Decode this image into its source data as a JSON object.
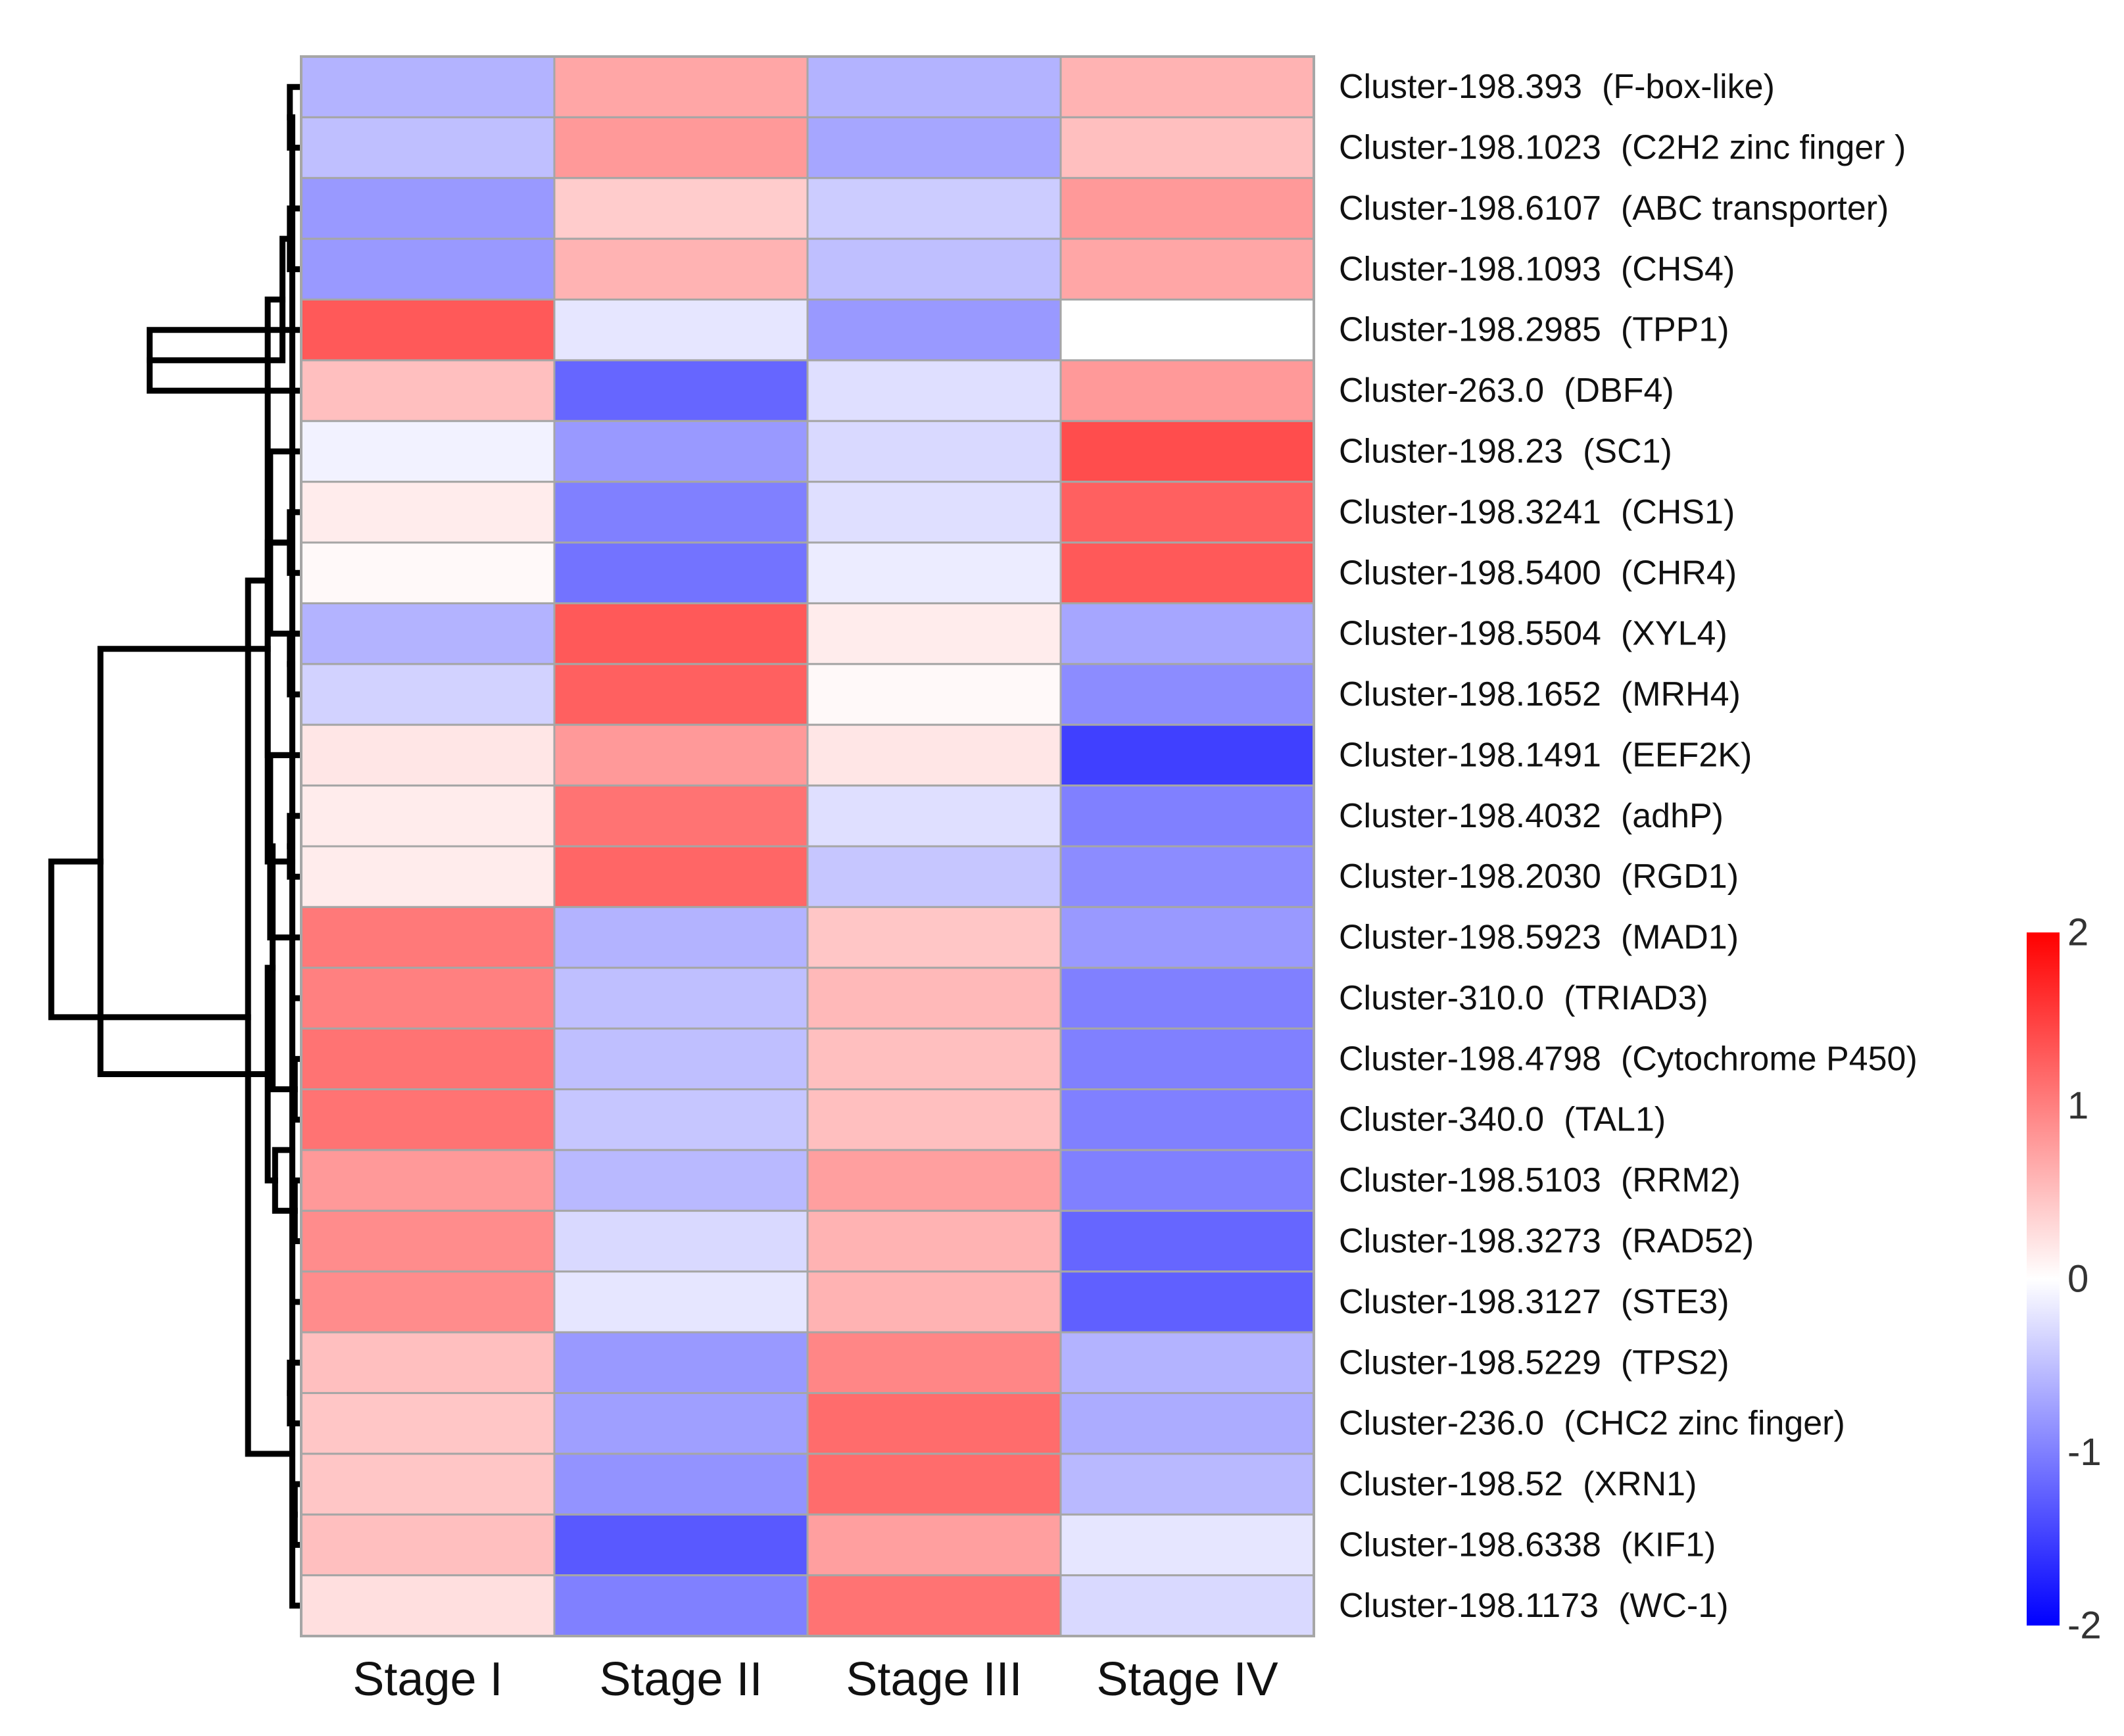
{
  "chart_data": {
    "type": "heatmap",
    "title": "",
    "columns": [
      "Stage I",
      "Stage II",
      "Stage III",
      "Stage IV"
    ],
    "rows": [
      {
        "id": "Cluster-198.393",
        "gene": "(F-box-like)",
        "values": [
          -0.6,
          0.7,
          -0.6,
          0.6
        ]
      },
      {
        "id": "Cluster-198.1023",
        "gene": "(C2H2 zinc finger )",
        "values": [
          -0.5,
          0.8,
          -0.7,
          0.5
        ]
      },
      {
        "id": "Cluster-198.6107",
        "gene": "(ABC transporter)",
        "values": [
          -0.8,
          0.4,
          -0.4,
          0.8
        ]
      },
      {
        "id": "Cluster-198.1093",
        "gene": "(CHS4)",
        "values": [
          -0.8,
          0.6,
          -0.5,
          0.7
        ]
      },
      {
        "id": "Cluster-198.2985",
        "gene": "(TPP1)",
        "values": [
          1.3,
          -0.2,
          -0.8,
          0.0
        ]
      },
      {
        "id": "Cluster-263.0",
        "gene": "(DBF4)",
        "values": [
          0.5,
          -1.2,
          -0.25,
          0.8
        ]
      },
      {
        "id": "Cluster-198.23",
        "gene": "(SC1)",
        "values": [
          -0.1,
          -0.8,
          -0.3,
          1.4
        ]
      },
      {
        "id": "Cluster-198.3241",
        "gene": "(CHS1)",
        "values": [
          0.15,
          -1.0,
          -0.25,
          1.25
        ]
      },
      {
        "id": "Cluster-198.5400",
        "gene": "(CHR4)",
        "values": [
          0.05,
          -1.1,
          -0.15,
          1.3
        ]
      },
      {
        "id": "Cluster-198.5504",
        "gene": "(XYL4)",
        "values": [
          -0.6,
          1.3,
          0.15,
          -0.7
        ]
      },
      {
        "id": "Cluster-198.1652",
        "gene": "(MRH4)",
        "values": [
          -0.35,
          1.25,
          0.05,
          -0.9
        ]
      },
      {
        "id": "Cluster-198.1491",
        "gene": "(EEF2K)",
        "values": [
          0.2,
          0.8,
          0.2,
          -1.5
        ]
      },
      {
        "id": "Cluster-198.4032",
        "gene": "(adhP)",
        "values": [
          0.15,
          1.1,
          -0.25,
          -1.0
        ]
      },
      {
        "id": "Cluster-198.2030",
        "gene": "(RGD1)",
        "values": [
          0.15,
          1.2,
          -0.45,
          -0.9
        ]
      },
      {
        "id": "Cluster-198.5923",
        "gene": "(MAD1)",
        "values": [
          1.05,
          -0.6,
          0.45,
          -0.8
        ]
      },
      {
        "id": "Cluster-310.0",
        "gene": "(TRIAD3)",
        "values": [
          1.0,
          -0.5,
          0.55,
          -1.0
        ]
      },
      {
        "id": "Cluster-198.4798",
        "gene": "(Cytochrome P450)",
        "values": [
          1.1,
          -0.5,
          0.5,
          -1.0
        ]
      },
      {
        "id": "Cluster-340.0",
        "gene": "(TAL1)",
        "values": [
          1.1,
          -0.45,
          0.5,
          -1.0
        ]
      },
      {
        "id": "Cluster-198.5103",
        "gene": "(RRM2)",
        "values": [
          0.8,
          -0.55,
          0.75,
          -1.0
        ]
      },
      {
        "id": "Cluster-198.3273",
        "gene": "(RAD52)",
        "values": [
          0.9,
          -0.3,
          0.6,
          -1.2
        ]
      },
      {
        "id": "Cluster-198.3127",
        "gene": "(STE3)",
        "values": [
          0.9,
          -0.2,
          0.6,
          -1.25
        ]
      },
      {
        "id": "Cluster-198.5229",
        "gene": "(TPS2)",
        "values": [
          0.5,
          -0.8,
          0.95,
          -0.6
        ]
      },
      {
        "id": "Cluster-236.0",
        "gene": "(CHC2 zinc finger)",
        "values": [
          0.45,
          -0.75,
          1.15,
          -0.65
        ]
      },
      {
        "id": "Cluster-198.52",
        "gene": "(XRN1)",
        "values": [
          0.45,
          -0.85,
          1.15,
          -0.55
        ]
      },
      {
        "id": "Cluster-198.6338",
        "gene": "(KIF1)",
        "values": [
          0.5,
          -1.3,
          0.75,
          -0.2
        ]
      },
      {
        "id": "Cluster-198.1173",
        "gene": "(WC-1)",
        "values": [
          0.25,
          -1.0,
          1.1,
          -0.3
        ]
      }
    ],
    "dendrogram": [
      {
        "a": 0,
        "b": 1,
        "h": 0.03
      },
      {
        "a": 2,
        "b": 3,
        "h": 0.03
      },
      {
        "a": 4,
        "b": 5,
        "h": 0.6
      },
      {
        "a": 7,
        "b": 8,
        "h": 0.03
      },
      {
        "a": 6,
        "b": 9,
        "h": 0.11
      },
      {
        "a": 9,
        "b": 10,
        "h": 0.03
      },
      {
        "a": 12,
        "b": 13,
        "h": 0.03
      },
      {
        "a": 11,
        "b": 14,
        "h": 0.11
      },
      {
        "a": 16,
        "b": 17,
        "h": 0.01
      },
      {
        "a": 18,
        "b": 19,
        "h": 0.01
      },
      {
        "a": 15,
        "b": 20,
        "h": 0.02
      },
      {
        "a": 21,
        "b": 22,
        "h": 0.03
      },
      {
        "a": 23,
        "b": 24,
        "h": 0.01
      },
      {
        "a": 25,
        "b": 26,
        "h": 0.02
      },
      {
        "a": 27,
        "b": 28,
        "h": 0.06
      },
      {
        "a": 29,
        "b": 30,
        "h": 0.03
      },
      {
        "a": 31,
        "b": 32,
        "h": 0.02
      },
      {
        "a": 33,
        "b": 34,
        "h": 0.1
      },
      {
        "a": 35,
        "b": 36,
        "h": 0.09
      },
      {
        "a": 37,
        "b": 38,
        "h": 0.02
      },
      {
        "a": 39,
        "b": 40,
        "h": 0.12
      },
      {
        "a": 41,
        "b": 42,
        "h": 0.12
      },
      {
        "a": 43,
        "b": 44,
        "h": 0.12
      },
      {
        "a": 45,
        "b": 46,
        "h": 0.2
      },
      {
        "a": 47,
        "b": 48,
        "h": 0.8
      },
      {
        "a": 49,
        "b": 50,
        "h": 1.0
      }
    ],
    "legend": {
      "ticks": [
        2,
        1,
        0,
        -1,
        -2
      ],
      "tick_labels": [
        "2",
        "1",
        "0",
        "-1",
        "-2"
      ],
      "range": [
        -2,
        2
      ]
    },
    "colors": {
      "low": "#0000ff",
      "mid": "#ffffff",
      "high": "#ff0000",
      "border": "#a6a6a6",
      "dendrogram": "#000000"
    }
  }
}
